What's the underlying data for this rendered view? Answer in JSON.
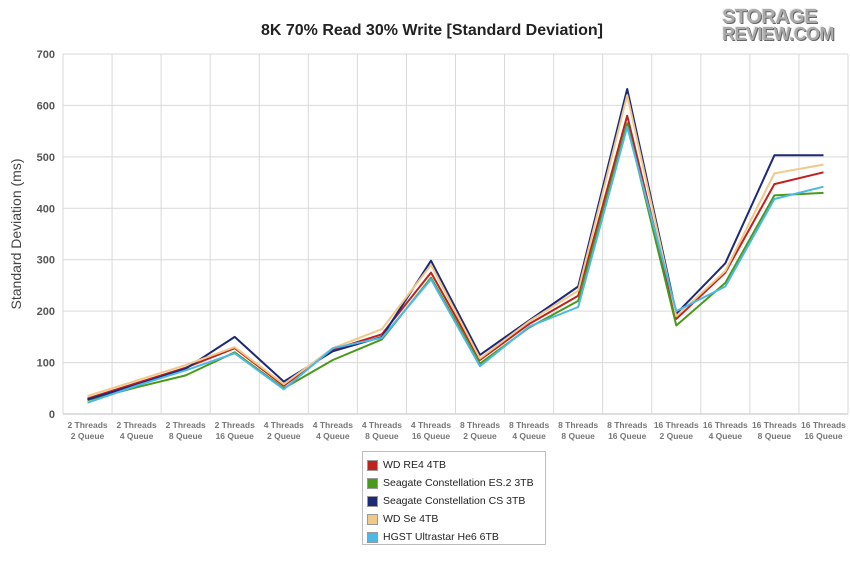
{
  "chart_data": {
    "type": "line",
    "title": "8K 70% Read 30% Write [Standard Deviation]",
    "xlabel": "",
    "ylabel": "Standard Deviation (ms)",
    "ylim": [
      0,
      700
    ],
    "yticks": [
      0,
      100,
      200,
      300,
      400,
      500,
      600,
      700
    ],
    "grid": true,
    "legend_position": "bottom",
    "categories": [
      [
        "2 Threads",
        "2 Queue"
      ],
      [
        "2 Threads",
        "4 Queue"
      ],
      [
        "2 Threads",
        "8 Queue"
      ],
      [
        "2 Threads",
        "16 Queue"
      ],
      [
        "4 Threads",
        "2 Queue"
      ],
      [
        "4 Threads",
        "4 Queue"
      ],
      [
        "4 Threads",
        "8 Queue"
      ],
      [
        "4 Threads",
        "16 Queue"
      ],
      [
        "8 Threads",
        "2 Queue"
      ],
      [
        "8 Threads",
        "4 Queue"
      ],
      [
        "8 Threads",
        "8 Queue"
      ],
      [
        "8 Threads",
        "16 Queue"
      ],
      [
        "16 Threads",
        "2 Queue"
      ],
      [
        "16 Threads",
        "4 Queue"
      ],
      [
        "16 Threads",
        "8 Queue"
      ],
      [
        "16 Threads",
        "16 Queue"
      ]
    ],
    "series": [
      {
        "name": "WD RE4 4TB",
        "color": "#c0201e",
        "values": [
          30,
          60,
          90,
          128,
          55,
          125,
          155,
          275,
          105,
          175,
          230,
          580,
          185,
          275,
          447,
          470
        ]
      },
      {
        "name": "Seagate Constellation ES.2 3TB",
        "color": "#4a9a1a",
        "values": [
          27,
          52,
          75,
          120,
          50,
          105,
          145,
          265,
          98,
          168,
          220,
          565,
          172,
          255,
          425,
          430
        ]
      },
      {
        "name": "Seagate Constellation CS 3TB",
        "color": "#1c2a78",
        "values": [
          28,
          57,
          88,
          150,
          63,
          122,
          150,
          298,
          115,
          182,
          248,
          632,
          195,
          293,
          503,
          503
        ]
      },
      {
        "name": "WD Se 4TB",
        "color": "#f0c88a",
        "values": [
          35,
          65,
          95,
          130,
          58,
          128,
          165,
          290,
          108,
          180,
          240,
          620,
          190,
          278,
          468,
          485
        ]
      },
      {
        "name": "HGST Ultrastar He6 6TB",
        "color": "#4bb8e8",
        "values": [
          22,
          55,
          85,
          118,
          48,
          128,
          148,
          262,
          93,
          170,
          208,
          558,
          200,
          248,
          418,
          442
        ]
      }
    ]
  },
  "logo": {
    "line1": "STORAGE",
    "line2": "REVIEW.COM"
  }
}
